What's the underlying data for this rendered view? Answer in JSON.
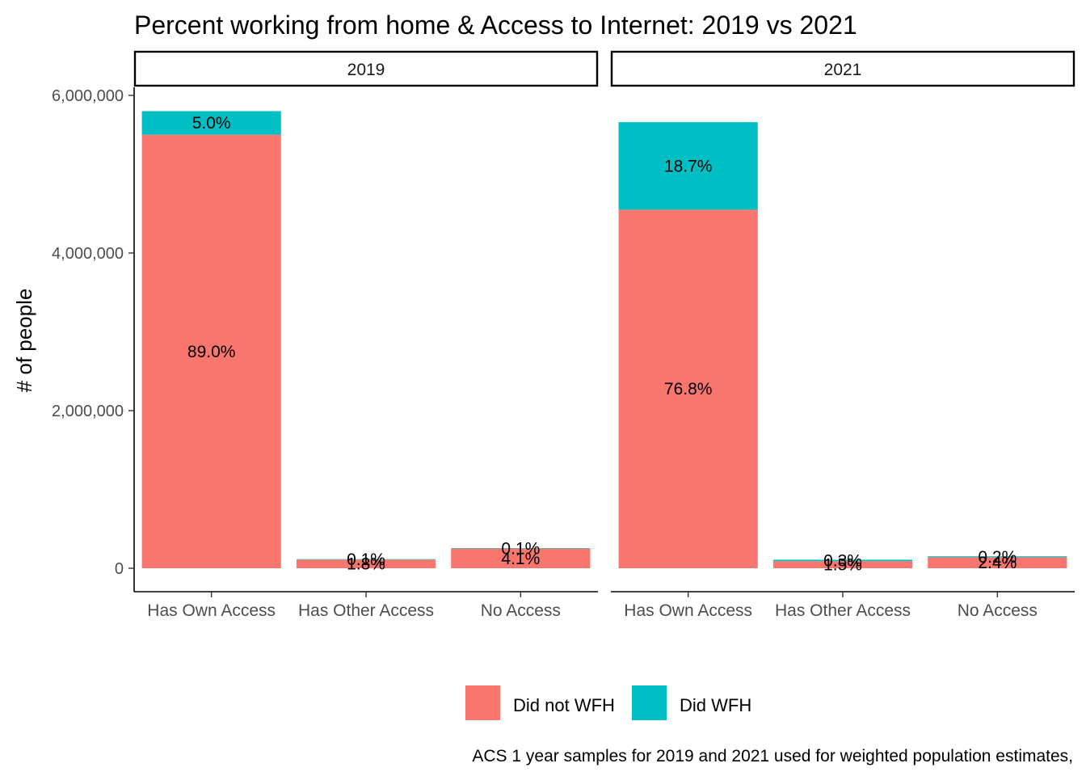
{
  "chart_data": {
    "type": "bar",
    "stacked": true,
    "title": "Percent working from home & Access to Internet: 2019 vs 2021",
    "xlabel": "",
    "ylabel": "# of people",
    "ylim": [
      0,
      6000000
    ],
    "yticks": [
      0,
      2000000,
      4000000,
      6000000
    ],
    "ytick_labels": [
      "0",
      "2,000,000",
      "4,000,000",
      "6,000,000"
    ],
    "categories": [
      "Has Own Access",
      "Has Other Access",
      "No Access"
    ],
    "legend_position": "bottom",
    "grid": false,
    "colors": {
      "Did not WFH": "#F8766D",
      "Did WFH": "#00BFC4"
    },
    "panels": [
      {
        "label": "2019",
        "series": [
          {
            "name": "Did not WFH",
            "values": [
              5500000,
              110000,
              250000
            ],
            "labels": [
              "89.0%",
              "1.8%",
              "4.1%"
            ]
          },
          {
            "name": "Did WFH",
            "values": [
              300000,
              6000,
              6000
            ],
            "labels": [
              "5.0%",
              "0.1%",
              "0.1%"
            ]
          }
        ]
      },
      {
        "label": "2021",
        "series": [
          {
            "name": "Did not WFH",
            "values": [
              4550000,
              90000,
              140000
            ],
            "labels": [
              "76.8%",
              "1.5%",
              "2.4%"
            ]
          },
          {
            "name": "Did WFH",
            "values": [
              1110000,
              18000,
              12000
            ],
            "labels": [
              "18.7%",
              "0.3%",
              "0.2%"
            ]
          }
        ]
      }
    ],
    "caption": "ACS 1 year samples for 2019 and 2021 used for weighted population estimates,"
  }
}
